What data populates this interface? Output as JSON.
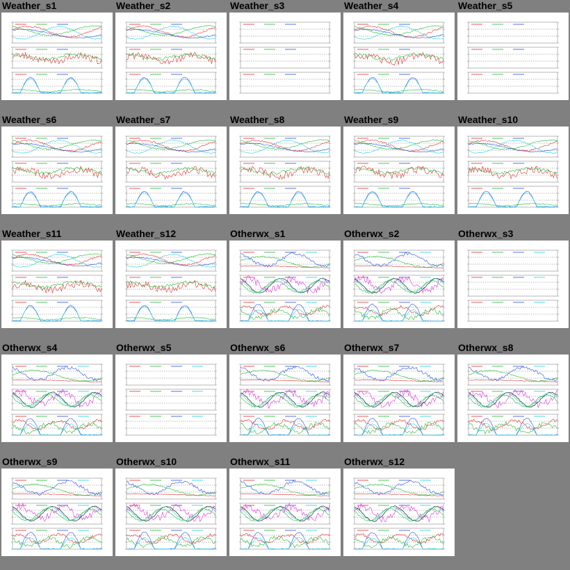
{
  "grid": {
    "columns": 5,
    "background_color": "#808080",
    "panels": [
      {
        "title": "Weather_s1",
        "kind": "weather",
        "seed": 1,
        "has_data": true
      },
      {
        "title": "Weather_s2",
        "kind": "weather",
        "seed": 2,
        "has_data": true
      },
      {
        "title": "Weather_s3",
        "kind": "weather",
        "seed": 3,
        "has_data": false
      },
      {
        "title": "Weather_s4",
        "kind": "weather",
        "seed": 4,
        "has_data": true
      },
      {
        "title": "Weather_s5",
        "kind": "weather",
        "seed": 5,
        "has_data": false
      },
      {
        "title": "Weather_s6",
        "kind": "weather",
        "seed": 6,
        "has_data": true
      },
      {
        "title": "Weather_s7",
        "kind": "weather",
        "seed": 7,
        "has_data": true
      },
      {
        "title": "Weather_s8",
        "kind": "weather",
        "seed": 8,
        "has_data": true
      },
      {
        "title": "Weather_s9",
        "kind": "weather",
        "seed": 9,
        "has_data": true
      },
      {
        "title": "Weather_s10",
        "kind": "weather",
        "seed": 10,
        "has_data": true
      },
      {
        "title": "Weather_s11",
        "kind": "weather",
        "seed": 11,
        "has_data": true
      },
      {
        "title": "Weather_s12",
        "kind": "weather",
        "seed": 12,
        "has_data": true
      },
      {
        "title": "Otherwx_s1",
        "kind": "otherwx",
        "seed": 13,
        "has_data": true
      },
      {
        "title": "Otherwx_s2",
        "kind": "otherwx",
        "seed": 14,
        "has_data": true
      },
      {
        "title": "Otherwx_s3",
        "kind": "otherwx",
        "seed": 15,
        "has_data": false
      },
      {
        "title": "Otherwx_s4",
        "kind": "otherwx",
        "seed": 16,
        "has_data": true
      },
      {
        "title": "Otherwx_s5",
        "kind": "otherwx",
        "seed": 17,
        "has_data": false
      },
      {
        "title": "Otherwx_s6",
        "kind": "otherwx",
        "seed": 18,
        "has_data": true
      },
      {
        "title": "Otherwx_s7",
        "kind": "otherwx",
        "seed": 19,
        "has_data": true
      },
      {
        "title": "Otherwx_s8",
        "kind": "otherwx",
        "seed": 20,
        "has_data": true
      },
      {
        "title": "Otherwx_s9",
        "kind": "otherwx",
        "seed": 21,
        "has_data": true
      },
      {
        "title": "Otherwx_s10",
        "kind": "otherwx",
        "seed": 22,
        "has_data": true
      },
      {
        "title": "Otherwx_s11",
        "kind": "otherwx",
        "seed": 23,
        "has_data": true
      },
      {
        "title": "Otherwx_s12",
        "kind": "otherwx",
        "seed": 24,
        "has_data": true
      }
    ]
  },
  "chart_data": {
    "type": "line",
    "layout": "small-multiples",
    "sub_panels_per_chart": 3,
    "grid": true,
    "series_colors": {
      "red": "#e03030",
      "green": "#22bb33",
      "blue": "#2a50e0",
      "cyan": "#22d0e0",
      "magenta": "#e030e0",
      "black": "#000000",
      "gray_frame": "#888888"
    }
  }
}
